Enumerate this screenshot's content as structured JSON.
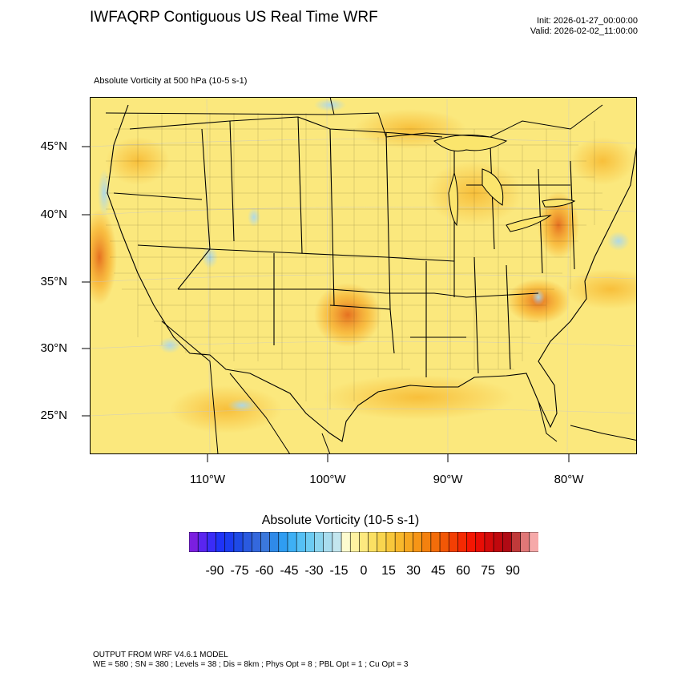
{
  "header": {
    "title": "IWFAQRP Contiguous US Real Time WRF",
    "init": "Init: 2026-01-27_00:00:00",
    "valid": "Valid: 2026-02-02_11:00:00"
  },
  "field_label": "Absolute Vorticity at 500 hPa   (10-5 s-1)",
  "map": {
    "region": "Contiguous United States",
    "lat_labels": [
      "45°N",
      "40°N",
      "35°N",
      "30°N",
      "25°N"
    ],
    "lon_labels": [
      "110°W",
      "100°W",
      "90°W",
      "80°W"
    ],
    "colors": {
      "background_fill": "#fbe56d",
      "high_vorticity": "#f7a31c",
      "peak_vorticity": "#e46a1c",
      "negative_vorticity": "#a8d8f0",
      "boundaries": "#000000"
    }
  },
  "colorbar": {
    "title": "Absolute Vorticity  (10-5 s-1)",
    "tick_labels": [
      "-90",
      "-75",
      "-60",
      "-45",
      "-30",
      "-15",
      "0",
      "15",
      "30",
      "45",
      "60",
      "75",
      "90"
    ],
    "colors": [
      "#7b1fe0",
      "#5a25f0",
      "#3a2cf7",
      "#1f33f7",
      "#1b3cf0",
      "#1e4ae6",
      "#2a5ae0",
      "#3468dd",
      "#3b78dc",
      "#2f8ae8",
      "#2f9df2",
      "#3eb0f5",
      "#55c0f5",
      "#6ccbf2",
      "#8cd5ef",
      "#a9ddef",
      "#c3e6ef",
      "#fdfbcf",
      "#fff2a1",
      "#fde97f",
      "#fbe063",
      "#f9d54e",
      "#f8c73b",
      "#f8b82c",
      "#f7a720",
      "#f69516",
      "#f4810f",
      "#f36d0a",
      "#f25706",
      "#f33f04",
      "#f52a02",
      "#f51602",
      "#e90d05",
      "#d40a0a",
      "#c0080d",
      "#b00a14",
      "#c03a3a",
      "#e07777",
      "#f6a9a9"
    ]
  },
  "footer": {
    "line1": "OUTPUT FROM WRF V4.6.1 MODEL",
    "line2": "WE = 580 ; SN = 380 ; Levels = 38 ; Dis = 8km ; Phys Opt = 8 ; PBL Opt = 1 ; Cu Opt = 3"
  }
}
